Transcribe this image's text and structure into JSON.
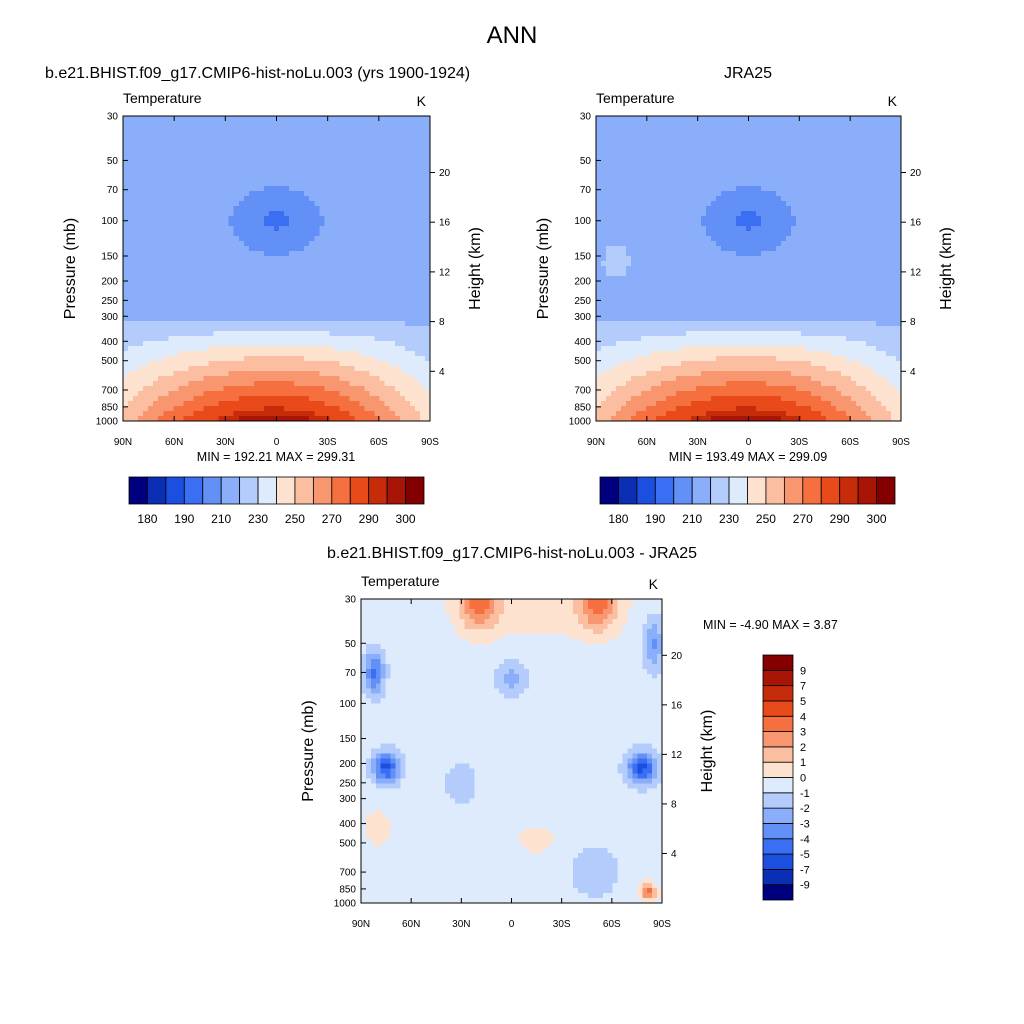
{
  "figure": {
    "title": "ANN"
  },
  "chart_data": [
    {
      "type": "heatmap",
      "title": "b.e21.BHIST.f09_g17.CMIP6-hist-noLu.003 (yrs 1900-1924)",
      "variable": "Temperature",
      "units": "K",
      "xlabel": "",
      "ylabel": "Pressure (mb)",
      "y2label": "Height (km)",
      "x_ticks": [
        "90N",
        "60N",
        "30N",
        "0",
        "30S",
        "60S",
        "90S"
      ],
      "x_range": [
        90,
        -90
      ],
      "y_ticks": [
        30,
        50,
        70,
        100,
        150,
        200,
        250,
        300,
        400,
        500,
        700,
        850,
        1000
      ],
      "y_range": [
        30,
        1000
      ],
      "y2_ticks": [
        20,
        16,
        12,
        8,
        4
      ],
      "stats": "MIN = 192.21  MAX = 299.31",
      "min": 192.21,
      "max": 299.31,
      "field": "abs1",
      "colorbar": {
        "levels": [
          180,
          185,
          190,
          200,
          210,
          220,
          230,
          240,
          250,
          260,
          270,
          280,
          290,
          295,
          300
        ],
        "labels": [
          "180",
          "190",
          "210",
          "230",
          "250",
          "270",
          "290",
          "300"
        ],
        "colors": [
          "#00007F",
          "#0A2FB4",
          "#1B4FE0",
          "#3B6FF3",
          "#6290F6",
          "#8AAEF9",
          "#B4CCFB",
          "#DDEBFD",
          "#FDE2CF",
          "#FBBEA0",
          "#F89670",
          "#F5703E",
          "#E84A19",
          "#C62B0A",
          "#A81507",
          "#840000"
        ]
      }
    },
    {
      "type": "heatmap",
      "title": "JRA25",
      "variable": "Temperature",
      "units": "K",
      "xlabel": "",
      "ylabel": "Pressure (mb)",
      "y2label": "Height (km)",
      "x_ticks": [
        "90N",
        "60N",
        "30N",
        "0",
        "30S",
        "60S",
        "90S"
      ],
      "x_range": [
        90,
        -90
      ],
      "y_ticks": [
        30,
        50,
        70,
        100,
        150,
        200,
        250,
        300,
        400,
        500,
        700,
        850,
        1000
      ],
      "y_range": [
        30,
        1000
      ],
      "y2_ticks": [
        20,
        16,
        12,
        8,
        4
      ],
      "stats": "MIN = 193.49  MAX = 299.09",
      "min": 193.49,
      "max": 299.09,
      "field": "abs2",
      "colorbar": {
        "levels": [
          180,
          185,
          190,
          200,
          210,
          220,
          230,
          240,
          250,
          260,
          270,
          280,
          290,
          295,
          300
        ],
        "labels": [
          "180",
          "190",
          "210",
          "230",
          "250",
          "270",
          "290",
          "300"
        ],
        "colors": [
          "#00007F",
          "#0A2FB4",
          "#1B4FE0",
          "#3B6FF3",
          "#6290F6",
          "#8AAEF9",
          "#B4CCFB",
          "#DDEBFD",
          "#FDE2CF",
          "#FBBEA0",
          "#F89670",
          "#F5703E",
          "#E84A19",
          "#C62B0A",
          "#A81507",
          "#840000"
        ]
      }
    },
    {
      "type": "heatmap",
      "title": "b.e21.BHIST.f09_g17.CMIP6-hist-noLu.003 - JRA25",
      "variable": "Temperature",
      "units": "K",
      "xlabel": "",
      "ylabel": "Pressure (mb)",
      "y2label": "Height (km)",
      "x_ticks": [
        "90N",
        "60N",
        "30N",
        "0",
        "30S",
        "60S",
        "90S"
      ],
      "x_range": [
        90,
        -90
      ],
      "y_ticks": [
        30,
        50,
        70,
        100,
        150,
        200,
        250,
        300,
        400,
        500,
        700,
        850,
        1000
      ],
      "y_range": [
        30,
        1000
      ],
      "y2_ticks": [
        20,
        16,
        12,
        8,
        4
      ],
      "stats": "MIN =  -4.90  MAX =   3.87",
      "min": -4.9,
      "max": 3.87,
      "field": "diff",
      "colorbar": {
        "levels": [
          -9,
          -7,
          -5,
          -4,
          -3,
          -2,
          -1,
          0,
          1,
          2,
          3,
          4,
          5,
          7,
          9
        ],
        "labels": [
          "-9",
          "-7",
          "-5",
          "-4",
          "-3",
          "-2",
          "-1",
          "0",
          "1",
          "2",
          "3",
          "4",
          "5",
          "7",
          "9"
        ],
        "colors": [
          "#00007F",
          "#0A2FB4",
          "#1B4FE0",
          "#3B6FF3",
          "#6290F6",
          "#8AAEF9",
          "#B4CCFB",
          "#DDEBFD",
          "#FDE2CF",
          "#FBBEA0",
          "#F89670",
          "#F5703E",
          "#E84A19",
          "#C62B0A",
          "#A81507",
          "#840000"
        ]
      }
    }
  ]
}
